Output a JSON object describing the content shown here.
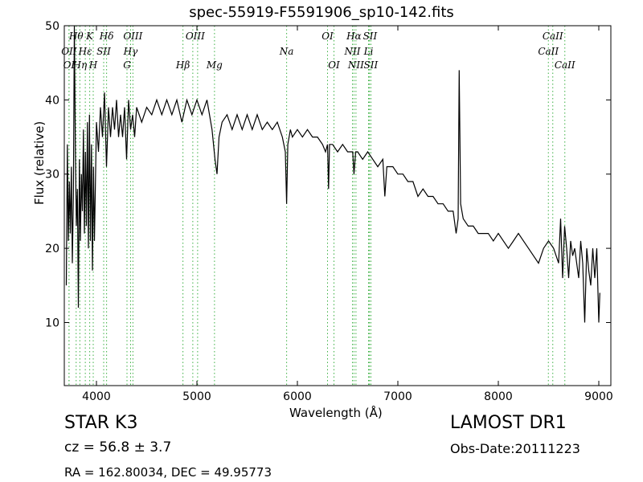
{
  "header": {
    "title": "spec-55919-F5591906_sp10-142.fits"
  },
  "info": {
    "object_type": "STAR   K3",
    "redshift": "cz = 56.8 ± 3.7",
    "coords": "RA = 162.80034, DEC = 49.95773",
    "survey": "LAMOST DR1",
    "obs_date": "Obs-Date:20111223"
  },
  "chart_data": {
    "type": "line",
    "title": "spec-55919-F5591906_sp10-142.fits",
    "xlabel": "Wavelength (Å)",
    "ylabel": "Flux (relative)",
    "xlim": [
      3680,
      9120
    ],
    "ylim": [
      1.5,
      50
    ],
    "x_ticks": [
      4000,
      5000,
      6000,
      7000,
      8000,
      9000
    ],
    "y_ticks": [
      10,
      20,
      30,
      40,
      50
    ],
    "grid": false,
    "line_color": "#000000",
    "marker_color": "#3cb043",
    "series": [
      {
        "values": [
          [
            3700,
            15
          ],
          [
            3710,
            34
          ],
          [
            3720,
            21
          ],
          [
            3730,
            29
          ],
          [
            3740,
            22
          ],
          [
            3750,
            31
          ],
          [
            3760,
            18
          ],
          [
            3770,
            27
          ],
          [
            3780,
            50
          ],
          [
            3790,
            33
          ],
          [
            3800,
            23
          ],
          [
            3810,
            28
          ],
          [
            3820,
            12
          ],
          [
            3830,
            32
          ],
          [
            3840,
            21
          ],
          [
            3850,
            30
          ],
          [
            3860,
            25
          ],
          [
            3870,
            36
          ],
          [
            3880,
            22
          ],
          [
            3890,
            33
          ],
          [
            3900,
            23
          ],
          [
            3910,
            37
          ],
          [
            3920,
            20
          ],
          [
            3930,
            38
          ],
          [
            3940,
            21
          ],
          [
            3950,
            34
          ],
          [
            3960,
            17
          ],
          [
            3970,
            31
          ],
          [
            3980,
            21
          ],
          [
            4000,
            37
          ],
          [
            4020,
            33
          ],
          [
            4040,
            39
          ],
          [
            4060,
            35
          ],
          [
            4080,
            41
          ],
          [
            4100,
            31
          ],
          [
            4120,
            39
          ],
          [
            4140,
            35
          ],
          [
            4160,
            39
          ],
          [
            4180,
            36
          ],
          [
            4200,
            40
          ],
          [
            4220,
            35
          ],
          [
            4240,
            38
          ],
          [
            4260,
            35
          ],
          [
            4280,
            39
          ],
          [
            4300,
            32
          ],
          [
            4320,
            40
          ],
          [
            4340,
            36
          ],
          [
            4360,
            38
          ],
          [
            4380,
            35
          ],
          [
            4400,
            39
          ],
          [
            4450,
            37
          ],
          [
            4500,
            39
          ],
          [
            4550,
            38
          ],
          [
            4600,
            40
          ],
          [
            4650,
            38
          ],
          [
            4700,
            40
          ],
          [
            4750,
            38
          ],
          [
            4800,
            40
          ],
          [
            4850,
            37
          ],
          [
            4900,
            40
          ],
          [
            4950,
            38
          ],
          [
            5000,
            40
          ],
          [
            5050,
            38
          ],
          [
            5100,
            40
          ],
          [
            5150,
            36
          ],
          [
            5180,
            32
          ],
          [
            5200,
            30
          ],
          [
            5220,
            35
          ],
          [
            5250,
            37
          ],
          [
            5300,
            38
          ],
          [
            5350,
            36
          ],
          [
            5400,
            38
          ],
          [
            5450,
            36
          ],
          [
            5500,
            38
          ],
          [
            5550,
            36
          ],
          [
            5600,
            38
          ],
          [
            5650,
            36
          ],
          [
            5700,
            37
          ],
          [
            5750,
            36
          ],
          [
            5800,
            37
          ],
          [
            5850,
            35
          ],
          [
            5880,
            33
          ],
          [
            5893,
            26
          ],
          [
            5905,
            34
          ],
          [
            5930,
            36
          ],
          [
            5950,
            35
          ],
          [
            6000,
            36
          ],
          [
            6050,
            35
          ],
          [
            6100,
            36
          ],
          [
            6150,
            35
          ],
          [
            6200,
            35
          ],
          [
            6250,
            34
          ],
          [
            6280,
            33
          ],
          [
            6300,
            34
          ],
          [
            6310,
            28
          ],
          [
            6320,
            34
          ],
          [
            6350,
            34
          ],
          [
            6400,
            33
          ],
          [
            6450,
            34
          ],
          [
            6500,
            33
          ],
          [
            6550,
            33
          ],
          [
            6563,
            30
          ],
          [
            6580,
            33
          ],
          [
            6600,
            33
          ],
          [
            6650,
            32
          ],
          [
            6700,
            33
          ],
          [
            6750,
            32
          ],
          [
            6800,
            31
          ],
          [
            6850,
            32
          ],
          [
            6870,
            27
          ],
          [
            6890,
            31
          ],
          [
            6900,
            31
          ],
          [
            6950,
            31
          ],
          [
            7000,
            30
          ],
          [
            7050,
            30
          ],
          [
            7100,
            29
          ],
          [
            7150,
            29
          ],
          [
            7200,
            27
          ],
          [
            7250,
            28
          ],
          [
            7300,
            27
          ],
          [
            7350,
            27
          ],
          [
            7400,
            26
          ],
          [
            7450,
            26
          ],
          [
            7500,
            25
          ],
          [
            7550,
            25
          ],
          [
            7580,
            22
          ],
          [
            7600,
            24
          ],
          [
            7610,
            44
          ],
          [
            7625,
            26
          ],
          [
            7650,
            24
          ],
          [
            7700,
            23
          ],
          [
            7750,
            23
          ],
          [
            7800,
            22
          ],
          [
            7850,
            22
          ],
          [
            7900,
            22
          ],
          [
            7950,
            21
          ],
          [
            8000,
            22
          ],
          [
            8050,
            21
          ],
          [
            8100,
            20
          ],
          [
            8150,
            21
          ],
          [
            8200,
            22
          ],
          [
            8250,
            21
          ],
          [
            8300,
            20
          ],
          [
            8350,
            19
          ],
          [
            8400,
            18
          ],
          [
            8450,
            20
          ],
          [
            8500,
            21
          ],
          [
            8550,
            20
          ],
          [
            8600,
            18
          ],
          [
            8620,
            24
          ],
          [
            8640,
            16
          ],
          [
            8660,
            23
          ],
          [
            8680,
            20
          ],
          [
            8700,
            16
          ],
          [
            8720,
            21
          ],
          [
            8740,
            19
          ],
          [
            8760,
            20
          ],
          [
            8780,
            18
          ],
          [
            8800,
            16
          ],
          [
            8820,
            21
          ],
          [
            8840,
            18
          ],
          [
            8860,
            10
          ],
          [
            8880,
            20
          ],
          [
            8900,
            17
          ],
          [
            8920,
            15
          ],
          [
            8940,
            20
          ],
          [
            8960,
            16
          ],
          [
            8980,
            20
          ],
          [
            9000,
            10
          ],
          [
            9010,
            14
          ]
        ]
      }
    ],
    "marker_groups": [
      {
        "label": "Hθ",
        "row": 0,
        "lines": [
          3798
        ]
      },
      {
        "label": "K",
        "row": 0,
        "lines": [
          3933
        ]
      },
      {
        "label": "Hδ",
        "row": 0,
        "lines": [
          4101
        ]
      },
      {
        "label": "OIII",
        "row": 0,
        "lines": [
          4363
        ]
      },
      {
        "label": "OIII",
        "row": 0,
        "lines": [
          4959,
          5007
        ]
      },
      {
        "label": "OI",
        "row": 0,
        "lines": [
          6300
        ]
      },
      {
        "label": "Hα",
        "row": 0,
        "lines": [
          6563
        ]
      },
      {
        "label": "SII",
        "row": 0,
        "lines": [
          6716,
          6731
        ]
      },
      {
        "label": "CaII",
        "row": 0,
        "lines": [
          8542
        ]
      },
      {
        "label": "OII",
        "row": 1,
        "lines": [
          3727
        ]
      },
      {
        "label": "Hε",
        "row": 1,
        "lines": [
          3889
        ]
      },
      {
        "label": "SII",
        "row": 1,
        "lines": [
          4072
        ]
      },
      {
        "label": "Hγ",
        "row": 1,
        "lines": [
          4340
        ]
      },
      {
        "label": "Na",
        "row": 1,
        "lines": [
          5893
        ]
      },
      {
        "label": "NII",
        "row": 1,
        "lines": [
          6548
        ]
      },
      {
        "label": "Li",
        "row": 1,
        "lines": [
          6708
        ]
      },
      {
        "label": "CaII",
        "row": 1,
        "lines": [
          8498
        ]
      },
      {
        "label": "OI",
        "row": 2,
        "lines": [
          3727
        ]
      },
      {
        "label": "Hη",
        "row": 2,
        "lines": [
          3835
        ]
      },
      {
        "label": "H",
        "row": 2,
        "lines": [
          3968
        ]
      },
      {
        "label": "G",
        "row": 2,
        "lines": [
          4304
        ]
      },
      {
        "label": "Hβ",
        "row": 2,
        "lines": [
          4861
        ]
      },
      {
        "label": "Mg",
        "row": 2,
        "lines": [
          5175
        ]
      },
      {
        "label": "OI",
        "row": 2,
        "lines": [
          6364
        ]
      },
      {
        "label": "NII",
        "row": 2,
        "lines": [
          6583
        ]
      },
      {
        "label": "SII",
        "row": 2,
        "lines": [
          6731
        ]
      },
      {
        "label": "CaII",
        "row": 2,
        "lines": [
          8662
        ]
      }
    ]
  }
}
